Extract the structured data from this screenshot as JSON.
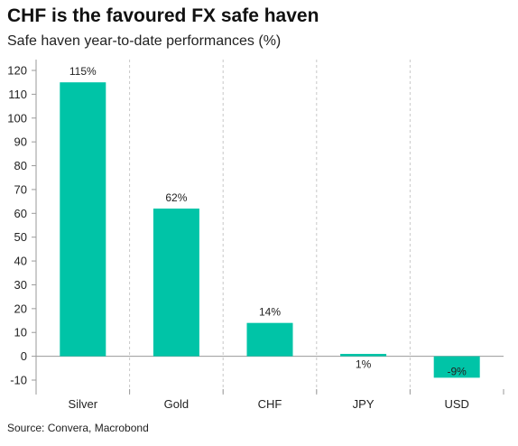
{
  "header": {
    "title": "CHF is the favoured FX safe haven",
    "subtitle": "Safe haven year-to-date performances (%)"
  },
  "footer": {
    "source": "Source: Convera, Macrobond"
  },
  "colors": {
    "bar": "#00c4a7",
    "gridline": "#c8c8c8",
    "axis": "#9a9a9a"
  },
  "chart_data": {
    "type": "bar",
    "title": "CHF is the favoured FX safe haven",
    "subtitle": "Safe haven year-to-date performances (%)",
    "categories": [
      "Silver",
      "Gold",
      "CHF",
      "JPY",
      "USD"
    ],
    "values": [
      115,
      62,
      14,
      1,
      -9
    ],
    "data_labels": [
      "115%",
      "62%",
      "14%",
      "1%",
      "-9%"
    ],
    "ylim": [
      -10,
      120
    ],
    "yticks": [
      -10,
      0,
      10,
      20,
      30,
      40,
      50,
      60,
      70,
      80,
      90,
      100,
      110,
      120
    ],
    "grid": "vertical dashed separators between categories",
    "xlabel": "",
    "ylabel": ""
  }
}
